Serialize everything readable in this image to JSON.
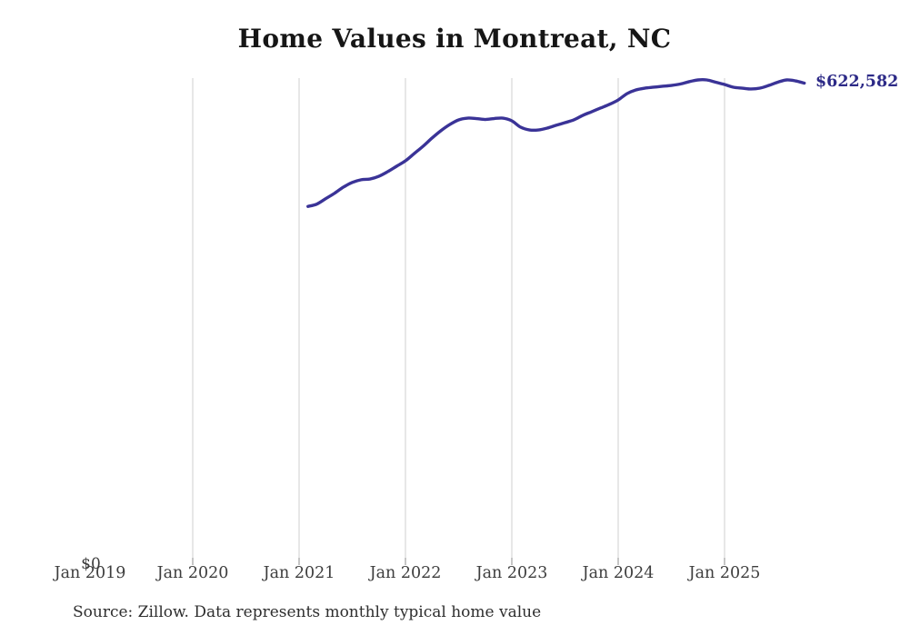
{
  "chart": {
    "title": "Home Values in Montreat, NC",
    "latest_value_label": "$622,582",
    "y_zero_label": "$0",
    "source_note": "Source: Zillow. Data represents monthly typical home value"
  },
  "chart_data": {
    "type": "line",
    "title": "Home Values in Montreat, NC",
    "series_name": "Monthly typical home value",
    "unit": "USD",
    "xlabel": "",
    "ylabel": "",
    "x_tick_labels": [
      "Jan 2019",
      "Jan 2020",
      "Jan 2021",
      "Jan 2022",
      "Jan 2023",
      "Jan 2024",
      "Jan 2025"
    ],
    "y_tick_labels": [
      "$0"
    ],
    "ylim": [
      0,
      629000
    ],
    "x_axis_start": "2019-01",
    "data_start": "2021-02",
    "data_end": "2025-10",
    "grid": "vertical-yearly (no gridline at Jan 2019)",
    "legend": "none",
    "line_color": "#3a3397",
    "latest_value": 622582,
    "latest_value_label": "$622,582",
    "months": [
      "2021-02",
      "2021-03",
      "2021-04",
      "2021-05",
      "2021-06",
      "2021-07",
      "2021-08",
      "2021-09",
      "2021-10",
      "2021-11",
      "2021-12",
      "2022-01",
      "2022-02",
      "2022-03",
      "2022-04",
      "2022-05",
      "2022-06",
      "2022-07",
      "2022-08",
      "2022-09",
      "2022-10",
      "2022-11",
      "2022-12",
      "2023-01",
      "2023-02",
      "2023-03",
      "2023-04",
      "2023-05",
      "2023-06",
      "2023-07",
      "2023-08",
      "2023-09",
      "2023-10",
      "2023-11",
      "2023-12",
      "2024-01",
      "2024-02",
      "2024-03",
      "2024-04",
      "2024-05",
      "2024-06",
      "2024-07",
      "2024-08",
      "2024-09",
      "2024-10",
      "2024-11",
      "2024-12",
      "2025-01",
      "2025-02",
      "2025-03",
      "2025-04",
      "2025-05",
      "2025-06",
      "2025-07",
      "2025-08",
      "2025-09",
      "2025-10"
    ],
    "values": [
      463000,
      466000,
      473000,
      480000,
      488000,
      494000,
      497500,
      498500,
      502000,
      508000,
      515000,
      522000,
      531500,
      541000,
      551500,
      561000,
      569000,
      575000,
      577300,
      576700,
      575500,
      576700,
      577300,
      573800,
      565500,
      562000,
      562000,
      564400,
      568000,
      571400,
      575000,
      580800,
      585500,
      590300,
      595000,
      600800,
      609000,
      613800,
      616100,
      617300,
      618500,
      619600,
      621400,
      624400,
      626700,
      626700,
      623800,
      620800,
      617300,
      616100,
      615000,
      616100,
      619600,
      623800,
      626700,
      625500,
      622582
    ]
  }
}
